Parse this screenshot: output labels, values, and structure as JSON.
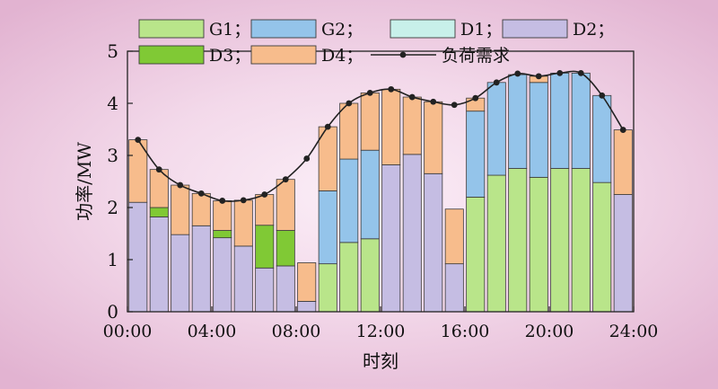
{
  "chart_data": {
    "type": "bar",
    "stacked": true,
    "xlabel": "时刻",
    "ylabel": "功率/MW",
    "ylim": [
      0,
      5
    ],
    "xlim": [
      0,
      24
    ],
    "x_ticks": [
      0,
      4,
      8,
      12,
      16,
      20,
      24
    ],
    "x_tick_labels": [
      "00:00",
      "04:00",
      "08:00",
      "12:00",
      "16:00",
      "20:00",
      "24:00"
    ],
    "y_ticks": [
      0,
      1,
      2,
      3,
      4,
      5
    ],
    "y_tick_labels": [
      "0",
      "1",
      "2",
      "3",
      "4",
      "5"
    ],
    "categories": [
      "1",
      "2",
      "3",
      "4",
      "5",
      "6",
      "7",
      "8",
      "9",
      "10",
      "11",
      "12",
      "13",
      "14",
      "15",
      "16",
      "17",
      "18",
      "19",
      "20",
      "21",
      "22",
      "23",
      "24"
    ],
    "series": [
      {
        "name": "G1",
        "color": "#b9e58a",
        "values": [
          0,
          0,
          0,
          0,
          0,
          0,
          0,
          0,
          0,
          0.92,
          1.33,
          1.4,
          0,
          0,
          0,
          0,
          2.2,
          2.62,
          2.75,
          2.58,
          2.75,
          2.75,
          2.48,
          0
        ]
      },
      {
        "name": "G2",
        "color": "#94c4ea",
        "values": [
          0,
          0,
          0,
          0,
          0,
          0,
          0,
          0,
          0,
          1.4,
          1.6,
          1.7,
          0,
          0,
          0,
          0,
          1.65,
          1.78,
          1.8,
          1.82,
          1.83,
          1.83,
          1.67,
          0
        ]
      },
      {
        "name": "D1",
        "color": "#c8f0ea",
        "values": [
          0,
          0,
          0,
          0,
          0,
          0,
          0,
          0,
          0,
          0,
          0,
          0,
          0,
          0,
          0,
          0,
          0,
          0,
          0,
          0,
          0,
          0,
          0,
          0
        ]
      },
      {
        "name": "D2",
        "color": "#c5bde3",
        "values": [
          2.1,
          1.82,
          1.48,
          1.65,
          1.42,
          1.26,
          0.84,
          0.88,
          0.2,
          0,
          0,
          0,
          2.82,
          3.02,
          2.65,
          0.92,
          0,
          0,
          0,
          0,
          0,
          0,
          0,
          2.25
        ]
      },
      {
        "name": "D3",
        "color": "#80c935",
        "values": [
          0,
          0.18,
          0,
          0,
          0.14,
          0,
          0.82,
          0.68,
          0,
          0,
          0,
          0,
          0,
          0,
          0,
          0,
          0,
          0,
          0,
          0,
          0,
          0,
          0,
          0
        ]
      },
      {
        "name": "D4",
        "color": "#f7bc8c",
        "values": [
          1.2,
          0.73,
          0.95,
          0.62,
          0.57,
          0.88,
          0.59,
          0.98,
          0.74,
          1.23,
          1.07,
          1.1,
          1.45,
          1.1,
          1.38,
          1.05,
          0.25,
          0,
          0,
          0.12,
          0,
          0,
          0,
          1.24
        ]
      }
    ],
    "demand": {
      "name": "负荷需求",
      "color": "#222222",
      "values": [
        3.3,
        2.73,
        2.43,
        2.27,
        2.13,
        2.14,
        2.25,
        2.54,
        2.94,
        3.55,
        4.0,
        4.2,
        4.27,
        4.12,
        4.03,
        3.97,
        4.1,
        4.4,
        4.57,
        4.52,
        4.58,
        4.58,
        4.15,
        3.49
      ]
    },
    "legend": {
      "placement": "top",
      "items": [
        {
          "label": "G1；",
          "type": "box",
          "color": "#b9e58a"
        },
        {
          "label": "G2；",
          "type": "box",
          "color": "#94c4ea"
        },
        {
          "label": "D1；",
          "type": "box",
          "color": "#c8f0ea"
        },
        {
          "label": "D2；",
          "type": "box",
          "color": "#c5bde3"
        },
        {
          "label": "D3；",
          "type": "box",
          "color": "#80c935"
        },
        {
          "label": "D4；",
          "type": "box",
          "color": "#f7bc8c"
        },
        {
          "label": "负荷需求",
          "type": "line",
          "color": "#222222"
        }
      ]
    },
    "grid": false
  }
}
